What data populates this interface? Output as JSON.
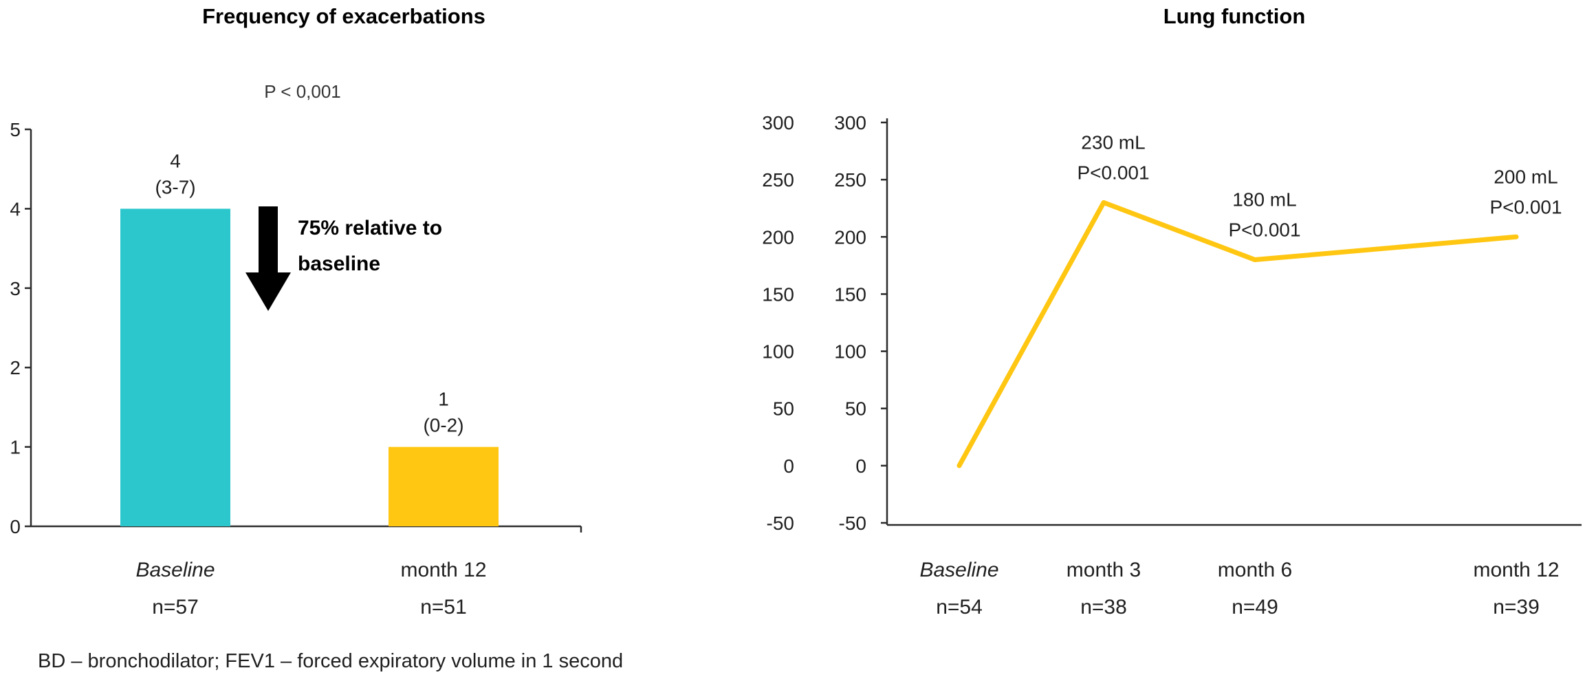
{
  "page": {
    "footnote": "BD – bronchodilator; FEV1 – forced expiratory volume in 1 second"
  },
  "chart_data": [
    {
      "id": "frequency-of-exacerbations",
      "type": "bar",
      "title": "Frequency of exacerbations",
      "p_value_label": "P < 0,001",
      "arrow_annotation": "75% relative to baseline",
      "categories": [
        "Baseline",
        "month 12"
      ],
      "category_subs": [
        "n=57",
        "n=51"
      ],
      "values": [
        4,
        1
      ],
      "value_labels": [
        [
          "4",
          "(3-7)"
        ],
        [
          "1",
          "(0-2)"
        ]
      ],
      "bar_colors": [
        "#2cc7cd",
        "#ffc612"
      ],
      "ylim": [
        0,
        5
      ],
      "yticks": [
        5,
        4,
        3,
        2,
        1,
        0
      ],
      "xlabel": "",
      "ylabel": "",
      "grid": false
    },
    {
      "id": "lung-function",
      "type": "line",
      "title": "Lung function",
      "categories": [
        "Baseline",
        "month 3",
        "month 6",
        "month 12"
      ],
      "category_subs": [
        "n=54",
        "n=38",
        "n=49",
        "n=39"
      ],
      "values": [
        0,
        230,
        180,
        200
      ],
      "point_labels": [
        "",
        "230 mL\nP<0.001",
        "180 mL\nP<0.001",
        "200 mL\nP<0.001"
      ],
      "line_color": "#ffc612",
      "ylim": [
        -50,
        300
      ],
      "yticks": [
        300,
        250,
        200,
        150,
        100,
        50,
        0,
        -50
      ],
      "y_axis_label_columns": 2,
      "xlabel": "",
      "ylabel": "",
      "grid": false
    }
  ]
}
